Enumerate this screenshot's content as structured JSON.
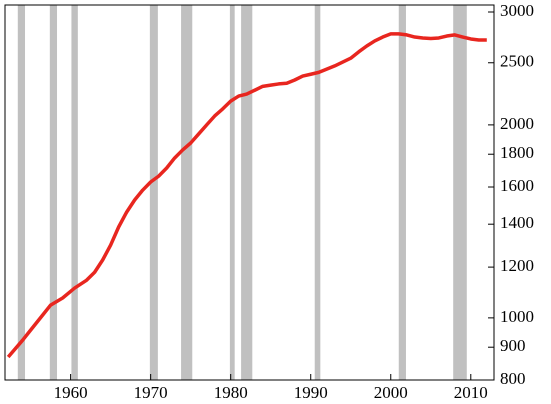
{
  "chart_data": {
    "type": "line",
    "log_y": true,
    "y_axis_side": "right",
    "grid": false,
    "color": "#e8261f",
    "shade_color": "#c0c0c0",
    "xlim": [
      1951.8,
      2012.9
    ],
    "ylim": [
      800,
      3000
    ],
    "xticks": [
      1960,
      1970,
      1980,
      1990,
      2000,
      2010
    ],
    "yticks": [
      800,
      900,
      1000,
      1200,
      1400,
      1600,
      1800,
      2000,
      2500,
      3000
    ],
    "shaded_periods": [
      [
        1953.4,
        1954.3
      ],
      [
        1957.4,
        1958.3
      ],
      [
        1960.1,
        1960.9
      ],
      [
        1969.9,
        1970.9
      ],
      [
        1973.8,
        1975.2
      ],
      [
        1979.9,
        1980.5
      ],
      [
        1981.3,
        1982.7
      ],
      [
        1990.5,
        1991.2
      ],
      [
        2001.0,
        2001.9
      ],
      [
        2007.8,
        2009.5
      ]
    ],
    "x": [
      1952.2,
      1954,
      1955,
      1956.5,
      1957.5,
      1959,
      1960.5,
      1962,
      1963,
      1964,
      1965,
      1966,
      1967,
      1968,
      1969,
      1970,
      1971,
      1972,
      1973,
      1974,
      1975,
      1976,
      1977,
      1978,
      1979,
      1980,
      1981,
      1982,
      1983,
      1984,
      1985,
      1986,
      1987,
      1988,
      1989,
      1990,
      1991,
      1992,
      1993,
      1994,
      1995,
      1996,
      1997,
      1998,
      1999,
      2000,
      2001,
      2002,
      2003,
      2004,
      2005,
      2006,
      2007,
      2008,
      2009,
      2010,
      2011,
      2012
    ],
    "values": [
      869,
      923,
      957,
      1010,
      1047,
      1074,
      1113,
      1145,
      1178,
      1231,
      1299,
      1386,
      1462,
      1527,
      1582,
      1629,
      1664,
      1713,
      1776,
      1828,
      1874,
      1936,
      2000,
      2065,
      2118,
      2178,
      2218,
      2234,
      2265,
      2297,
      2307,
      2317,
      2323,
      2350,
      2383,
      2399,
      2415,
      2443,
      2472,
      2506,
      2541,
      2600,
      2655,
      2704,
      2742,
      2773,
      2773,
      2763,
      2742,
      2733,
      2728,
      2733,
      2752,
      2763,
      2742,
      2723,
      2713,
      2713
    ]
  }
}
